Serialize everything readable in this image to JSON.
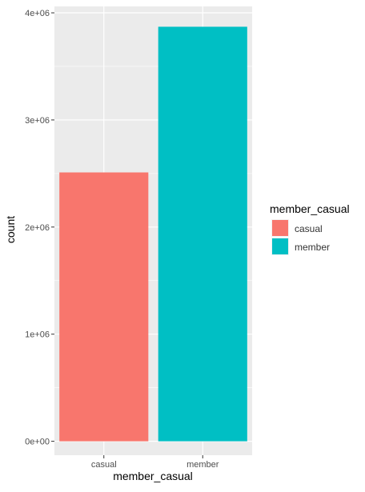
{
  "chart_data": {
    "type": "bar",
    "title": "",
    "xlabel": "member_casual",
    "ylabel": "count",
    "categories": [
      "casual",
      "member"
    ],
    "values": [
      2510000,
      3870000
    ],
    "colors": [
      "#F8766D",
      "#00BFC4"
    ],
    "ylim": [
      -130000,
      4060000
    ],
    "yticks": [
      0,
      1000000,
      2000000,
      3000000,
      4000000
    ],
    "ytick_labels": [
      "0e+00",
      "1e+06",
      "2e+06",
      "3e+06",
      "4e+06"
    ],
    "grid": true,
    "legend": {
      "title": "member_casual",
      "placement": "right",
      "entries": [
        {
          "label": "casual",
          "color": "#F8766D"
        },
        {
          "label": "member",
          "color": "#00BFC4"
        }
      ]
    },
    "theme": {
      "panel_background": "#EBEBEB",
      "grid_color": "#FFFFFF",
      "text_color": "#4D4D4D",
      "title_color": "#000000"
    }
  }
}
